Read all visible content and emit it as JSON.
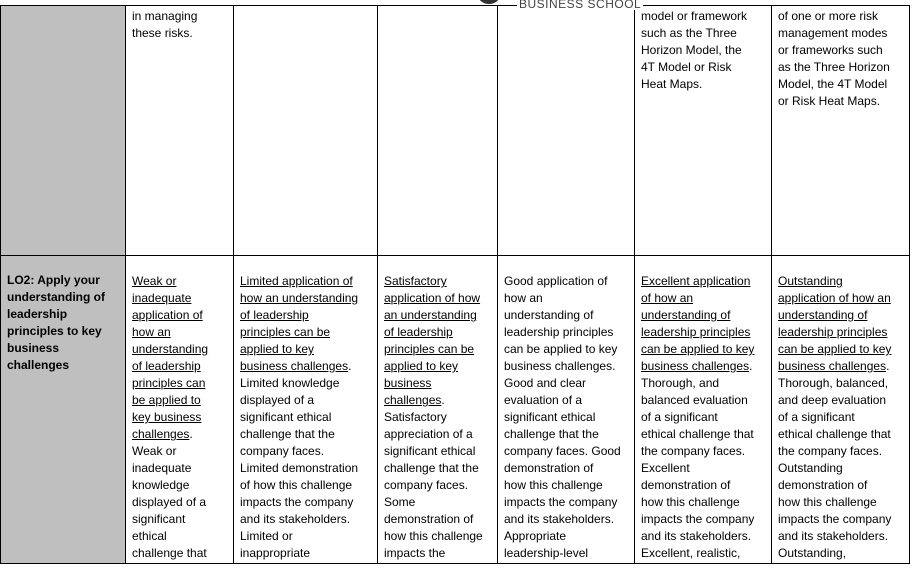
{
  "header": {
    "logo_text": "BUSINESS SCHOOL"
  },
  "colors": {
    "criterion_column": "#bfbfbf",
    "border": "#000000"
  },
  "rows": [
    {
      "criterion": [],
      "cells": [
        [
          {
            "t": "in managing"
          },
          {
            "t": "these risks."
          }
        ],
        [],
        [],
        [],
        [
          {
            "t": "model or framework"
          },
          {
            "t": "such as the Three"
          },
          {
            "t": "Horizon Model, the"
          },
          {
            "t": "4T Model or Risk"
          },
          {
            "t": "Heat Maps."
          }
        ],
        [
          {
            "t": "of one or more risk"
          },
          {
            "t": "management modes"
          },
          {
            "t": "or frameworks such"
          },
          {
            "t": "as the Three Horizon"
          },
          {
            "t": "Model, the 4T Model"
          },
          {
            "t": "or Risk Heat Maps."
          }
        ]
      ]
    },
    {
      "criterion": [
        "LO2: Apply your",
        "understanding of",
        "leadership",
        "principles to key",
        "business",
        "challenges"
      ],
      "cells": [
        [
          {
            "u": "Weak or"
          },
          {
            "u": "inadequate"
          },
          {
            "u": "application of"
          },
          {
            "u": "how an"
          },
          {
            "u": "understanding"
          },
          {
            "u": "of leadership"
          },
          {
            "u": "principles can"
          },
          {
            "u": "be applied to"
          },
          {
            "u": "key business"
          },
          {
            "u": "challenges",
            "t": "."
          },
          {
            "t": "Weak or"
          },
          {
            "t": "inadequate"
          },
          {
            "t": "knowledge"
          },
          {
            "t": "displayed of a"
          },
          {
            "t": "significant"
          },
          {
            "t": "ethical"
          },
          {
            "t": "challenge that"
          }
        ],
        [
          {
            "u": "Limited application of"
          },
          {
            "u": "how an understanding"
          },
          {
            "u": "of leadership"
          },
          {
            "u": "principles can be"
          },
          {
            "u": "applied to key"
          },
          {
            "u": "business challenges",
            "t": "."
          },
          {
            "t": "Limited knowledge"
          },
          {
            "t": "displayed of a"
          },
          {
            "t": "significant ethical"
          },
          {
            "t": "challenge that the"
          },
          {
            "t": "company faces."
          },
          {
            "t": "Limited demonstration"
          },
          {
            "t": "of how this challenge"
          },
          {
            "t": "impacts the company"
          },
          {
            "t": "and its stakeholders."
          },
          {
            "t": "Limited or"
          },
          {
            "t": "inappropriate"
          }
        ],
        [
          {
            "u": "Satisfactory"
          },
          {
            "u": "application of how"
          },
          {
            "u": "an understanding"
          },
          {
            "u": "of leadership"
          },
          {
            "u": "principles can be"
          },
          {
            "u": "applied to key"
          },
          {
            "u": "business"
          },
          {
            "u": "challenges",
            "t": "."
          },
          {
            "t": "Satisfactory"
          },
          {
            "t": "appreciation of a"
          },
          {
            "t": "significant ethical"
          },
          {
            "t": "challenge that the"
          },
          {
            "t": "company faces."
          },
          {
            "t": "Some"
          },
          {
            "t": "demonstration of"
          },
          {
            "t": "how this challenge"
          },
          {
            "t": "impacts the"
          }
        ],
        [
          {
            "t": "Good application of"
          },
          {
            "t": "how an"
          },
          {
            "t": "understanding of"
          },
          {
            "t": "leadership principles"
          },
          {
            "t": "can be applied to key"
          },
          {
            "t": "business challenges."
          },
          {
            "t": "Good and clear"
          },
          {
            "t": "evaluation of a"
          },
          {
            "t": "significant ethical"
          },
          {
            "t": "challenge that the"
          },
          {
            "t": "company faces. Good"
          },
          {
            "t": "demonstration of"
          },
          {
            "t": "how this challenge"
          },
          {
            "t": "impacts the company"
          },
          {
            "t": "and its stakeholders."
          },
          {
            "t": "Appropriate"
          },
          {
            "t": "leadership-level"
          }
        ],
        [
          {
            "u": "Excellent application"
          },
          {
            "u": "of how an"
          },
          {
            "u": "understanding of"
          },
          {
            "u": "leadership principles"
          },
          {
            "u": "can be applied to key"
          },
          {
            "u": "business challenges",
            "t": "."
          },
          {
            "t": "Thorough, and"
          },
          {
            "t": "balanced evaluation"
          },
          {
            "t": "of a significant"
          },
          {
            "t": "ethical challenge that"
          },
          {
            "t": "the company faces."
          },
          {
            "t": "Excellent"
          },
          {
            "t": "demonstration of"
          },
          {
            "t": "how this challenge"
          },
          {
            "t": "impacts the company"
          },
          {
            "t": "and its stakeholders."
          },
          {
            "t": "Excellent, realistic,"
          }
        ],
        [
          {
            "u": "Outstanding"
          },
          {
            "u": "application of how an"
          },
          {
            "u": "understanding of"
          },
          {
            "u": "leadership principles"
          },
          {
            "u": "can be applied to key"
          },
          {
            "u": "business challenges",
            "t": "."
          },
          {
            "t": "Thorough, balanced,"
          },
          {
            "t": "and deep evaluation"
          },
          {
            "t": "of a significant"
          },
          {
            "t": "ethical challenge that"
          },
          {
            "t": "the company faces."
          },
          {
            "t": "Outstanding"
          },
          {
            "t": "demonstration of"
          },
          {
            "t": "how this challenge"
          },
          {
            "t": "impacts the company"
          },
          {
            "t": "and its stakeholders."
          },
          {
            "t": "Outstanding,"
          }
        ]
      ]
    }
  ]
}
